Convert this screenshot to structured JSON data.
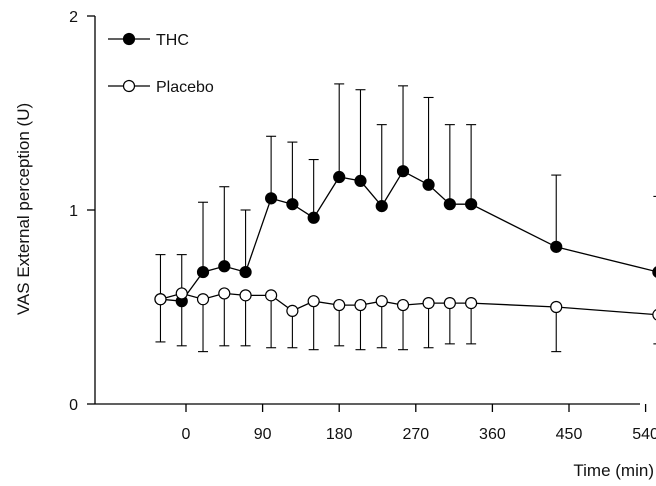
{
  "chart_data": {
    "type": "line",
    "xlabel": "Time (min)",
    "ylabel": "VAS External perception (U)",
    "xlim": [
      -45,
      570
    ],
    "ylim": [
      0,
      2
    ],
    "xticks": [
      0,
      90,
      180,
      270,
      360,
      450,
      540
    ],
    "yticks": [
      0,
      1,
      2
    ],
    "grid": false,
    "legend_position": "top-left",
    "series": [
      {
        "name": "THC",
        "marker": "filled-circle",
        "color": "#000000",
        "x": [
          -30,
          -5,
          20,
          45,
          70,
          100,
          125,
          150,
          180,
          205,
          230,
          255,
          285,
          310,
          335,
          435,
          555
        ],
        "y": [
          0.54,
          0.53,
          0.68,
          0.71,
          0.68,
          1.06,
          1.03,
          0.96,
          1.17,
          1.15,
          1.02,
          1.2,
          1.13,
          1.03,
          1.03,
          0.81,
          0.68
        ],
        "err_up": [
          0.23,
          0.24,
          0.36,
          0.41,
          0.32,
          0.32,
          0.32,
          0.3,
          0.48,
          0.47,
          0.42,
          0.44,
          0.45,
          0.41,
          0.41,
          0.37,
          0.39
        ]
      },
      {
        "name": "Placebo",
        "marker": "open-circle",
        "color": "#000000",
        "x": [
          -30,
          -5,
          20,
          45,
          70,
          100,
          125,
          150,
          180,
          205,
          230,
          255,
          285,
          310,
          335,
          435,
          555
        ],
        "y": [
          0.54,
          0.57,
          0.54,
          0.57,
          0.56,
          0.56,
          0.48,
          0.53,
          0.51,
          0.51,
          0.53,
          0.51,
          0.52,
          0.52,
          0.52,
          0.5,
          0.46
        ],
        "err_down": [
          0.22,
          0.27,
          0.27,
          0.27,
          0.26,
          0.27,
          0.19,
          0.25,
          0.21,
          0.23,
          0.24,
          0.23,
          0.23,
          0.21,
          0.21,
          0.23,
          0.15
        ]
      }
    ]
  }
}
